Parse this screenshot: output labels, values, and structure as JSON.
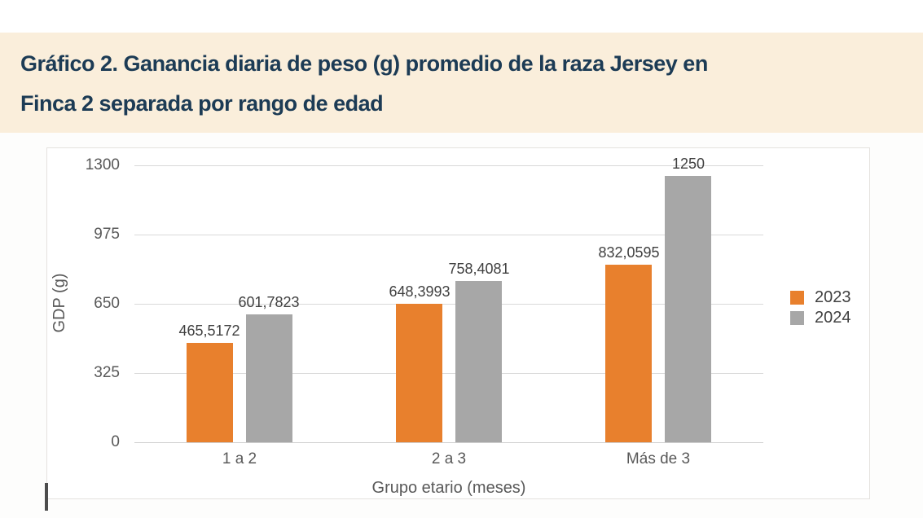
{
  "header": {
    "line1": "Gráfico 2. Ganancia diaria de peso (g) promedio de la raza Jersey en",
    "line2": "Finca 2 separada por rango de edad",
    "background": "#faeedb",
    "text_color": "#1c3b55"
  },
  "chart_data": {
    "type": "bar",
    "categories": [
      "1 a 2",
      "2 a 3",
      "Más de 3"
    ],
    "series": [
      {
        "name": "2023",
        "color": "#e8802d",
        "values": [
          465.5172,
          648.3993,
          832.0595
        ],
        "labels": [
          "465,5172",
          "648,3993",
          "832,0595"
        ]
      },
      {
        "name": "2024",
        "color": "#a7a7a7",
        "values": [
          601.7823,
          758.4081,
          1250
        ],
        "labels": [
          "601,7823",
          "758,4081",
          "1250"
        ]
      }
    ],
    "xlabel": "Grupo etario (meses)",
    "ylabel": "GDP (g)",
    "ylim": [
      0,
      1300
    ],
    "yticks": [
      0,
      325,
      650,
      975,
      1300
    ],
    "ytick_labels": [
      "0",
      "325",
      "650",
      "975",
      "1300"
    ],
    "legend_position": "right",
    "grid": "horizontal",
    "gridline_color": "#d9d9d9",
    "axis_text_color": "#595959",
    "data_label_color": "#404040"
  }
}
